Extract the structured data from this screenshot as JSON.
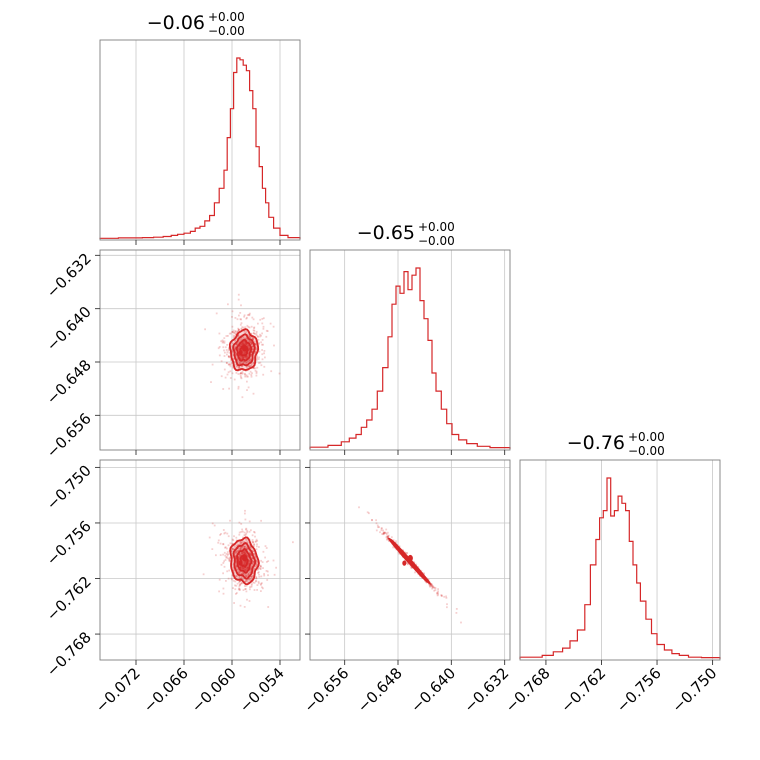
{
  "chart_data": {
    "type": "corner",
    "color": "#d62728",
    "parameters": [
      {
        "title_value": "−0.06",
        "title_upper": "+0.00",
        "title_lower": "−0.00",
        "range": [
          -0.0765,
          -0.0515
        ],
        "ticks": [
          -0.072,
          -0.066,
          -0.06,
          -0.054
        ],
        "tick_labels": [
          "−0.072",
          "−0.066",
          "−0.060",
          "−0.054"
        ],
        "center": -0.0585,
        "sigma": 0.00085
      },
      {
        "title_value": "−0.65",
        "title_upper": "+0.00",
        "title_lower": "−0.00",
        "range": [
          -0.6612,
          -0.6312
        ],
        "ticks": [
          -0.656,
          -0.648,
          -0.64,
          -0.632
        ],
        "tick_labels": [
          "−0.656",
          "−0.648",
          "−0.640",
          "−0.632"
        ],
        "center": -0.6463,
        "sigma": 0.0015
      },
      {
        "title_value": "−0.76",
        "title_upper": "+0.00",
        "title_lower": "−0.00",
        "range": [
          -0.7708,
          -0.7492
        ],
        "ticks": [
          -0.768,
          -0.762,
          -0.756,
          -0.75
        ],
        "tick_labels": [
          "−0.768",
          "−0.762",
          "−0.756",
          "−0.750"
        ],
        "center": -0.7601,
        "sigma": 0.0012
      }
    ],
    "histograms": [
      {
        "bin_edges": [
          -0.0765,
          -0.0742,
          -0.0726,
          -0.0712,
          -0.0698,
          -0.0686,
          -0.0676,
          -0.0668,
          -0.066,
          -0.0652,
          -0.0646,
          -0.064,
          -0.0634,
          -0.0628,
          -0.0622,
          -0.0616,
          -0.061,
          -0.0606,
          -0.0602,
          -0.0598,
          -0.0594,
          -0.059,
          -0.0586,
          -0.0582,
          -0.0578,
          -0.0574,
          -0.057,
          -0.0566,
          -0.0562,
          -0.0558,
          -0.0554,
          -0.0548,
          -0.054,
          -0.053,
          -0.0515
        ],
        "counts": [
          0.004,
          0.006,
          0.006,
          0.008,
          0.01,
          0.014,
          0.02,
          0.026,
          0.032,
          0.042,
          0.06,
          0.07,
          0.1,
          0.13,
          0.2,
          0.28,
          0.38,
          0.56,
          0.72,
          0.92,
          1.0,
          0.99,
          0.96,
          0.93,
          0.82,
          0.72,
          0.51,
          0.4,
          0.28,
          0.2,
          0.12,
          0.06,
          0.02,
          0.008
        ]
      },
      {
        "bin_edges": [
          -0.6612,
          -0.6585,
          -0.6565,
          -0.6553,
          -0.6543,
          -0.6535,
          -0.6527,
          -0.6519,
          -0.6511,
          -0.6503,
          -0.6495,
          -0.6489,
          -0.6483,
          -0.6477,
          -0.6471,
          -0.6465,
          -0.6459,
          -0.6453,
          -0.6447,
          -0.6441,
          -0.6435,
          -0.6429,
          -0.6423,
          -0.6415,
          -0.6407,
          -0.6399,
          -0.6389,
          -0.6377,
          -0.6361,
          -0.6342,
          -0.6312
        ],
        "counts": [
          0.01,
          0.02,
          0.04,
          0.06,
          0.08,
          0.12,
          0.16,
          0.22,
          0.32,
          0.45,
          0.62,
          0.8,
          0.9,
          0.86,
          0.98,
          0.88,
          0.96,
          1.0,
          0.82,
          0.72,
          0.6,
          0.42,
          0.32,
          0.22,
          0.14,
          0.08,
          0.05,
          0.03,
          0.015,
          0.008
        ]
      },
      {
        "bin_edges": [
          -0.7708,
          -0.7684,
          -0.7672,
          -0.7662,
          -0.7654,
          -0.7646,
          -0.7638,
          -0.7632,
          -0.7626,
          -0.7622,
          -0.7618,
          -0.7614,
          -0.761,
          -0.7606,
          -0.7602,
          -0.7598,
          -0.7594,
          -0.759,
          -0.7586,
          -0.7582,
          -0.7578,
          -0.7572,
          -0.7566,
          -0.756,
          -0.7552,
          -0.7544,
          -0.7536,
          -0.7526,
          -0.7512,
          -0.7492
        ],
        "counts": [
          0.01,
          0.02,
          0.04,
          0.06,
          0.1,
          0.16,
          0.3,
          0.52,
          0.66,
          0.78,
          0.82,
          1.0,
          0.79,
          0.82,
          0.9,
          0.86,
          0.82,
          0.65,
          0.52,
          0.42,
          0.32,
          0.22,
          0.14,
          0.08,
          0.05,
          0.03,
          0.02,
          0.01,
          0.008
        ]
      }
    ],
    "contour_levels": [
      "0.5-sigma",
      "1-sigma",
      "1.5-sigma",
      "2-sigma"
    ],
    "correlations": {
      "p1_p0": 0.05,
      "p2_p0": -0.1,
      "p2_p1": -0.995
    },
    "grid": true
  }
}
